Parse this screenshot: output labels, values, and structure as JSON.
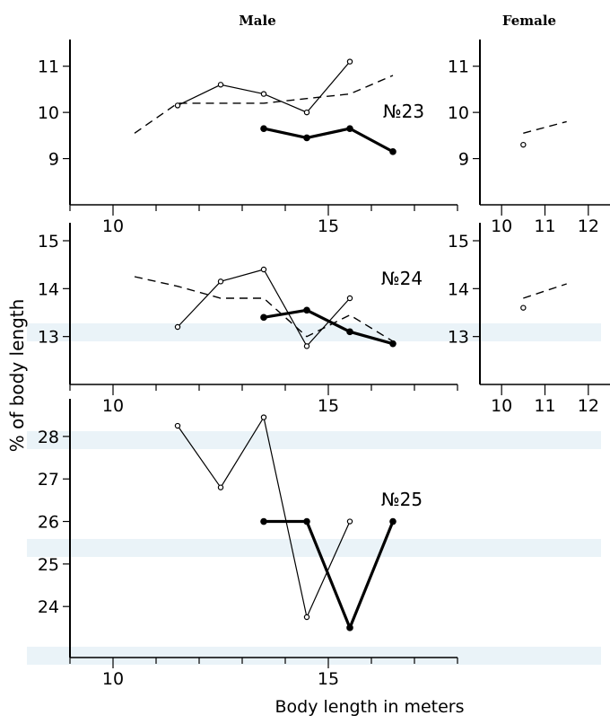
{
  "panel_titles": {
    "male": "Male",
    "female": "Female"
  },
  "y_axis_label": "% of body length",
  "x_axis_label": "Body length in meters",
  "chart_data": [
    {
      "type": "line",
      "panel": "male",
      "label": "№23",
      "xlim": [
        9,
        18
      ],
      "ylim": [
        8,
        11.5
      ],
      "x_ticks": [
        10,
        15
      ],
      "y_ticks": [
        9,
        10,
        11
      ],
      "series": [
        {
          "style": "thin-open-markers",
          "x": [
            11.5,
            12.5,
            13.5,
            14.5,
            15.5
          ],
          "y": [
            10.15,
            10.6,
            10.4,
            10.0,
            11.1
          ]
        },
        {
          "style": "dashed",
          "x": [
            10.5,
            11.5,
            12.5,
            13.5,
            14.5,
            15.5,
            16.5
          ],
          "y": [
            9.55,
            10.2,
            10.2,
            10.2,
            10.3,
            10.4,
            10.8
          ]
        },
        {
          "style": "thick-filled-markers",
          "x": [
            13.5,
            14.5,
            15.5,
            16.5
          ],
          "y": [
            9.65,
            9.45,
            9.65,
            9.15
          ]
        }
      ]
    },
    {
      "type": "line",
      "panel": "female",
      "label": "",
      "xlim": [
        9.5,
        12.5
      ],
      "ylim": [
        8,
        11.5
      ],
      "x_ticks": [
        10,
        11,
        12
      ],
      "y_ticks": [
        9,
        10,
        11
      ],
      "series": [
        {
          "style": "thin-open-markers",
          "x": [
            10.5
          ],
          "y": [
            9.3
          ]
        },
        {
          "style": "dashed",
          "x": [
            10.5,
            11.5
          ],
          "y": [
            9.55,
            9.8
          ]
        }
      ]
    },
    {
      "type": "line",
      "panel": "male",
      "label": "№24",
      "xlim": [
        9,
        18
      ],
      "ylim": [
        12,
        15.3
      ],
      "x_ticks": [
        10,
        15
      ],
      "y_ticks": [
        13,
        14,
        15
      ],
      "series": [
        {
          "style": "thin-open-markers",
          "x": [
            11.5,
            12.5,
            13.5,
            14.5,
            15.5
          ],
          "y": [
            13.2,
            14.15,
            14.4,
            12.8,
            13.8
          ]
        },
        {
          "style": "dashed",
          "x": [
            10.5,
            11.5,
            12.5,
            13.5,
            14.5,
            15.5,
            16.5
          ],
          "y": [
            14.25,
            14.05,
            13.8,
            13.8,
            13.0,
            13.45,
            12.9
          ]
        },
        {
          "style": "thick-filled-markers",
          "x": [
            13.5,
            14.5,
            15.5,
            16.5
          ],
          "y": [
            13.4,
            13.55,
            13.1,
            12.85
          ]
        }
      ]
    },
    {
      "type": "line",
      "panel": "female",
      "label": "",
      "xlim": [
        9.5,
        12.5
      ],
      "ylim": [
        12,
        15.3
      ],
      "x_ticks": [
        10,
        11,
        12
      ],
      "y_ticks": [
        13,
        14,
        15
      ],
      "series": [
        {
          "style": "thin-open-markers",
          "x": [
            10.5
          ],
          "y": [
            13.6
          ]
        },
        {
          "style": "dashed",
          "x": [
            10.5,
            11.5
          ],
          "y": [
            13.8,
            14.1
          ]
        }
      ]
    },
    {
      "type": "line",
      "panel": "male",
      "label": "№25",
      "xlim": [
        9,
        18
      ],
      "ylim": [
        22.8,
        28.8
      ],
      "x_ticks": [
        10,
        15
      ],
      "y_ticks": [
        24,
        25,
        26,
        27,
        28
      ],
      "series": [
        {
          "style": "thin-open-markers",
          "x": [
            11.5,
            12.5,
            13.5,
            14.5,
            15.5
          ],
          "y": [
            28.25,
            26.8,
            28.45,
            23.75,
            26.0
          ]
        },
        {
          "style": "thick-filled-markers",
          "x": [
            13.5,
            14.5,
            15.5,
            16.5
          ],
          "y": [
            26.0,
            26.0,
            23.5,
            26.0
          ]
        }
      ]
    }
  ]
}
